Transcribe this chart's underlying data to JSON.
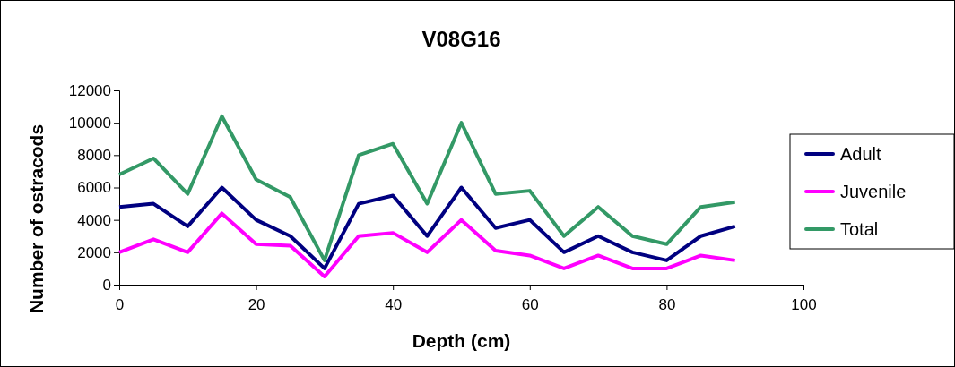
{
  "chart_data": {
    "type": "line",
    "title": "V08G16",
    "xlabel": "Depth (cm)",
    "ylabel": "Number of ostracods",
    "x": [
      0,
      5,
      10,
      15,
      20,
      25,
      30,
      35,
      40,
      45,
      50,
      55,
      60,
      65,
      70,
      75,
      80,
      85,
      90
    ],
    "series": [
      {
        "name": "Adult",
        "color": "#000080",
        "values": [
          4800,
          5000,
          3600,
          6000,
          4000,
          3000,
          1000,
          5000,
          5500,
          3000,
          6000,
          3500,
          4000,
          2000,
          3000,
          2000,
          1500,
          3000,
          3600
        ]
      },
      {
        "name": "Juvenile",
        "color": "#ff00ff",
        "values": [
          2000,
          2800,
          2000,
          4400,
          2500,
          2400,
          500,
          3000,
          3200,
          2000,
          4000,
          2100,
          1800,
          1000,
          1800,
          1000,
          1000,
          1800,
          1500
        ]
      },
      {
        "name": "Total",
        "color": "#339966",
        "values": [
          6800,
          7800,
          5600,
          10400,
          6500,
          5400,
          1500,
          8000,
          8700,
          5000,
          10000,
          5600,
          5800,
          3000,
          4800,
          3000,
          2500,
          4800,
          5100
        ]
      }
    ],
    "xlim": [
      0,
      100
    ],
    "xticks": [
      0,
      20,
      40,
      60,
      80,
      100
    ],
    "ylim": [
      0,
      12000
    ],
    "yticks": [
      0,
      2000,
      4000,
      6000,
      8000,
      10000,
      12000
    ],
    "grid": false,
    "legend": "right",
    "marker": "none",
    "line_style": "solid"
  }
}
